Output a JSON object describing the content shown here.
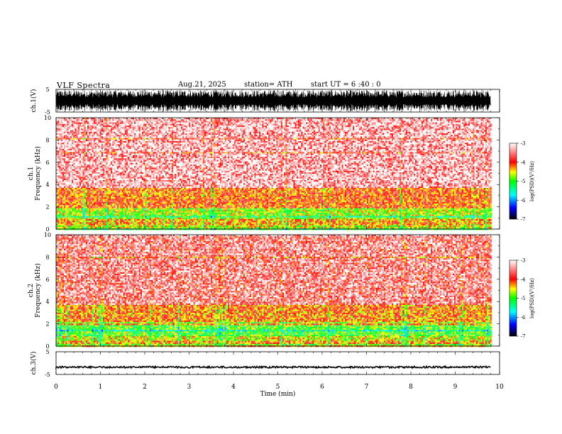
{
  "header": {
    "title": "VLF  Spectra",
    "date": "Aug.21, 2025",
    "station": "station= ATH",
    "start": "start  UT  =   6  :40 : 0"
  },
  "colors": {
    "background": "#ffffff",
    "trace": "#000000",
    "colormap": [
      "#000000",
      "#0000ff",
      "#00ffff",
      "#00ff00",
      "#ffff00",
      "#ff0000",
      "#ffffff"
    ]
  },
  "chart_data": [
    {
      "type": "line",
      "panel": "ch1-waveform",
      "ylabel": "ch.1(V)",
      "yticks": [
        "5",
        "-5"
      ],
      "ylim": [
        -5,
        5
      ],
      "xlim": [
        0,
        10
      ],
      "description_values": {
        "data_end_min": 9.8,
        "amplitude_V": 5
      }
    },
    {
      "type": "heatmap",
      "panel": "ch1-spectrogram",
      "ylabel_line1": "ch.1",
      "ylabel_line2": "Frequency  (kHz)",
      "ylim": [
        0,
        10
      ],
      "yticks": [
        "0",
        "2",
        "4",
        "6",
        "8",
        "10"
      ],
      "xlim": [
        0,
        10
      ],
      "data_end_min": 9.8,
      "bands_kHz": [
        {
          "from": 0,
          "to": 0.4,
          "log_psd": -4.6
        },
        {
          "from": 0.4,
          "to": 0.9,
          "log_psd": -4.3
        },
        {
          "from": 0.9,
          "to": 2.0,
          "log_psd": -4.7
        },
        {
          "from": 2.0,
          "to": 3.8,
          "log_psd": -4.1
        },
        {
          "from": 3.8,
          "to": 10,
          "log_psd": -3.5
        }
      ],
      "colorbar": {
        "label": "log(PSD)(V²/Hz)",
        "ticks": [
          "-3",
          "-4",
          "-5",
          "-6",
          "-7"
        ],
        "range": [
          -7,
          -3
        ]
      }
    },
    {
      "type": "heatmap",
      "panel": "ch2-spectrogram",
      "ylabel_line1": "ch.2",
      "ylabel_line2": "Frequency  (kHz)",
      "ylim": [
        0,
        10
      ],
      "yticks": [
        "0",
        "2",
        "4",
        "6",
        "8",
        "10"
      ],
      "xlim": [
        0,
        10
      ],
      "data_end_min": 9.8,
      "bands_kHz": [
        {
          "from": 0,
          "to": 0.5,
          "log_psd": -4.3
        },
        {
          "from": 0.5,
          "to": 0.9,
          "log_psd": -4.6
        },
        {
          "from": 0.9,
          "to": 2.0,
          "log_psd": -4.9
        },
        {
          "from": 2.0,
          "to": 3.8,
          "log_psd": -4.2
        },
        {
          "from": 3.8,
          "to": 10,
          "log_psd": -3.7
        }
      ],
      "colorbar": {
        "label": "log(PSD)(V²/Hz)",
        "ticks": [
          "-3",
          "-4",
          "-5",
          "-6",
          "-7"
        ],
        "range": [
          -7,
          -3
        ]
      }
    },
    {
      "type": "line",
      "panel": "ch3-waveform",
      "ylabel": "ch.3(V)",
      "yticks": [
        "5",
        "-5"
      ],
      "ylim": [
        -5,
        5
      ],
      "xlim": [
        0,
        10
      ],
      "description_values": {
        "level_V": -1.8,
        "data_end_min": 9.8
      }
    }
  ],
  "xaxis": {
    "label": "Time  (min)",
    "ticks": [
      "0",
      "1",
      "2",
      "3",
      "4",
      "5",
      "6",
      "7",
      "8",
      "9",
      "10"
    ],
    "range": [
      0,
      10
    ]
  }
}
